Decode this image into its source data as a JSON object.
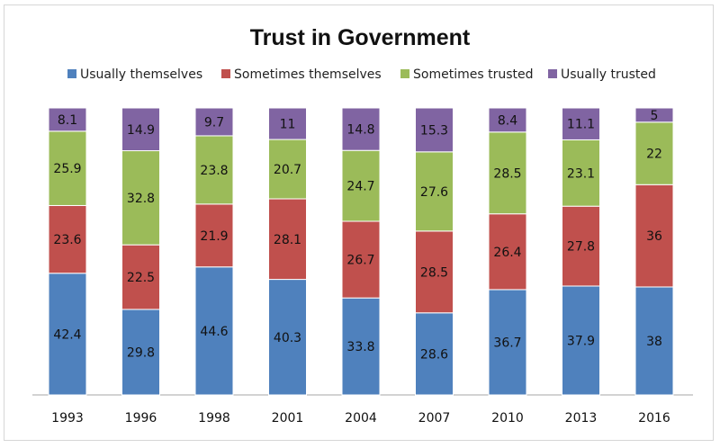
{
  "chart_data": {
    "type": "bar",
    "stacked": true,
    "normalized_to_100": true,
    "title": "Trust in Government",
    "xlabel": "",
    "ylabel": "",
    "ylim": [
      0,
      100
    ],
    "grid": false,
    "legend_position": "top",
    "categories": [
      "1993",
      "1996",
      "1998",
      "2001",
      "2004",
      "2007",
      "2010",
      "2013",
      "2016"
    ],
    "series": [
      {
        "name": "Usually themselves",
        "color": "#4f81bd",
        "values": [
          42.4,
          29.8,
          44.6,
          40.3,
          33.8,
          28.6,
          36.7,
          37.9,
          38
        ]
      },
      {
        "name": "Sometimes themselves",
        "color": "#c0504d",
        "values": [
          23.6,
          22.5,
          21.9,
          28.1,
          26.7,
          28.5,
          26.4,
          27.8,
          36
        ]
      },
      {
        "name": "Sometimes trusted",
        "color": "#9bbb59",
        "values": [
          25.9,
          32.8,
          23.8,
          20.7,
          24.7,
          27.6,
          28.5,
          23.1,
          22
        ]
      },
      {
        "name": "Usually trusted",
        "color": "#8064a2",
        "values": [
          8.1,
          14.9,
          9.7,
          11,
          14.8,
          15.3,
          8.4,
          11.1,
          5
        ]
      }
    ]
  }
}
